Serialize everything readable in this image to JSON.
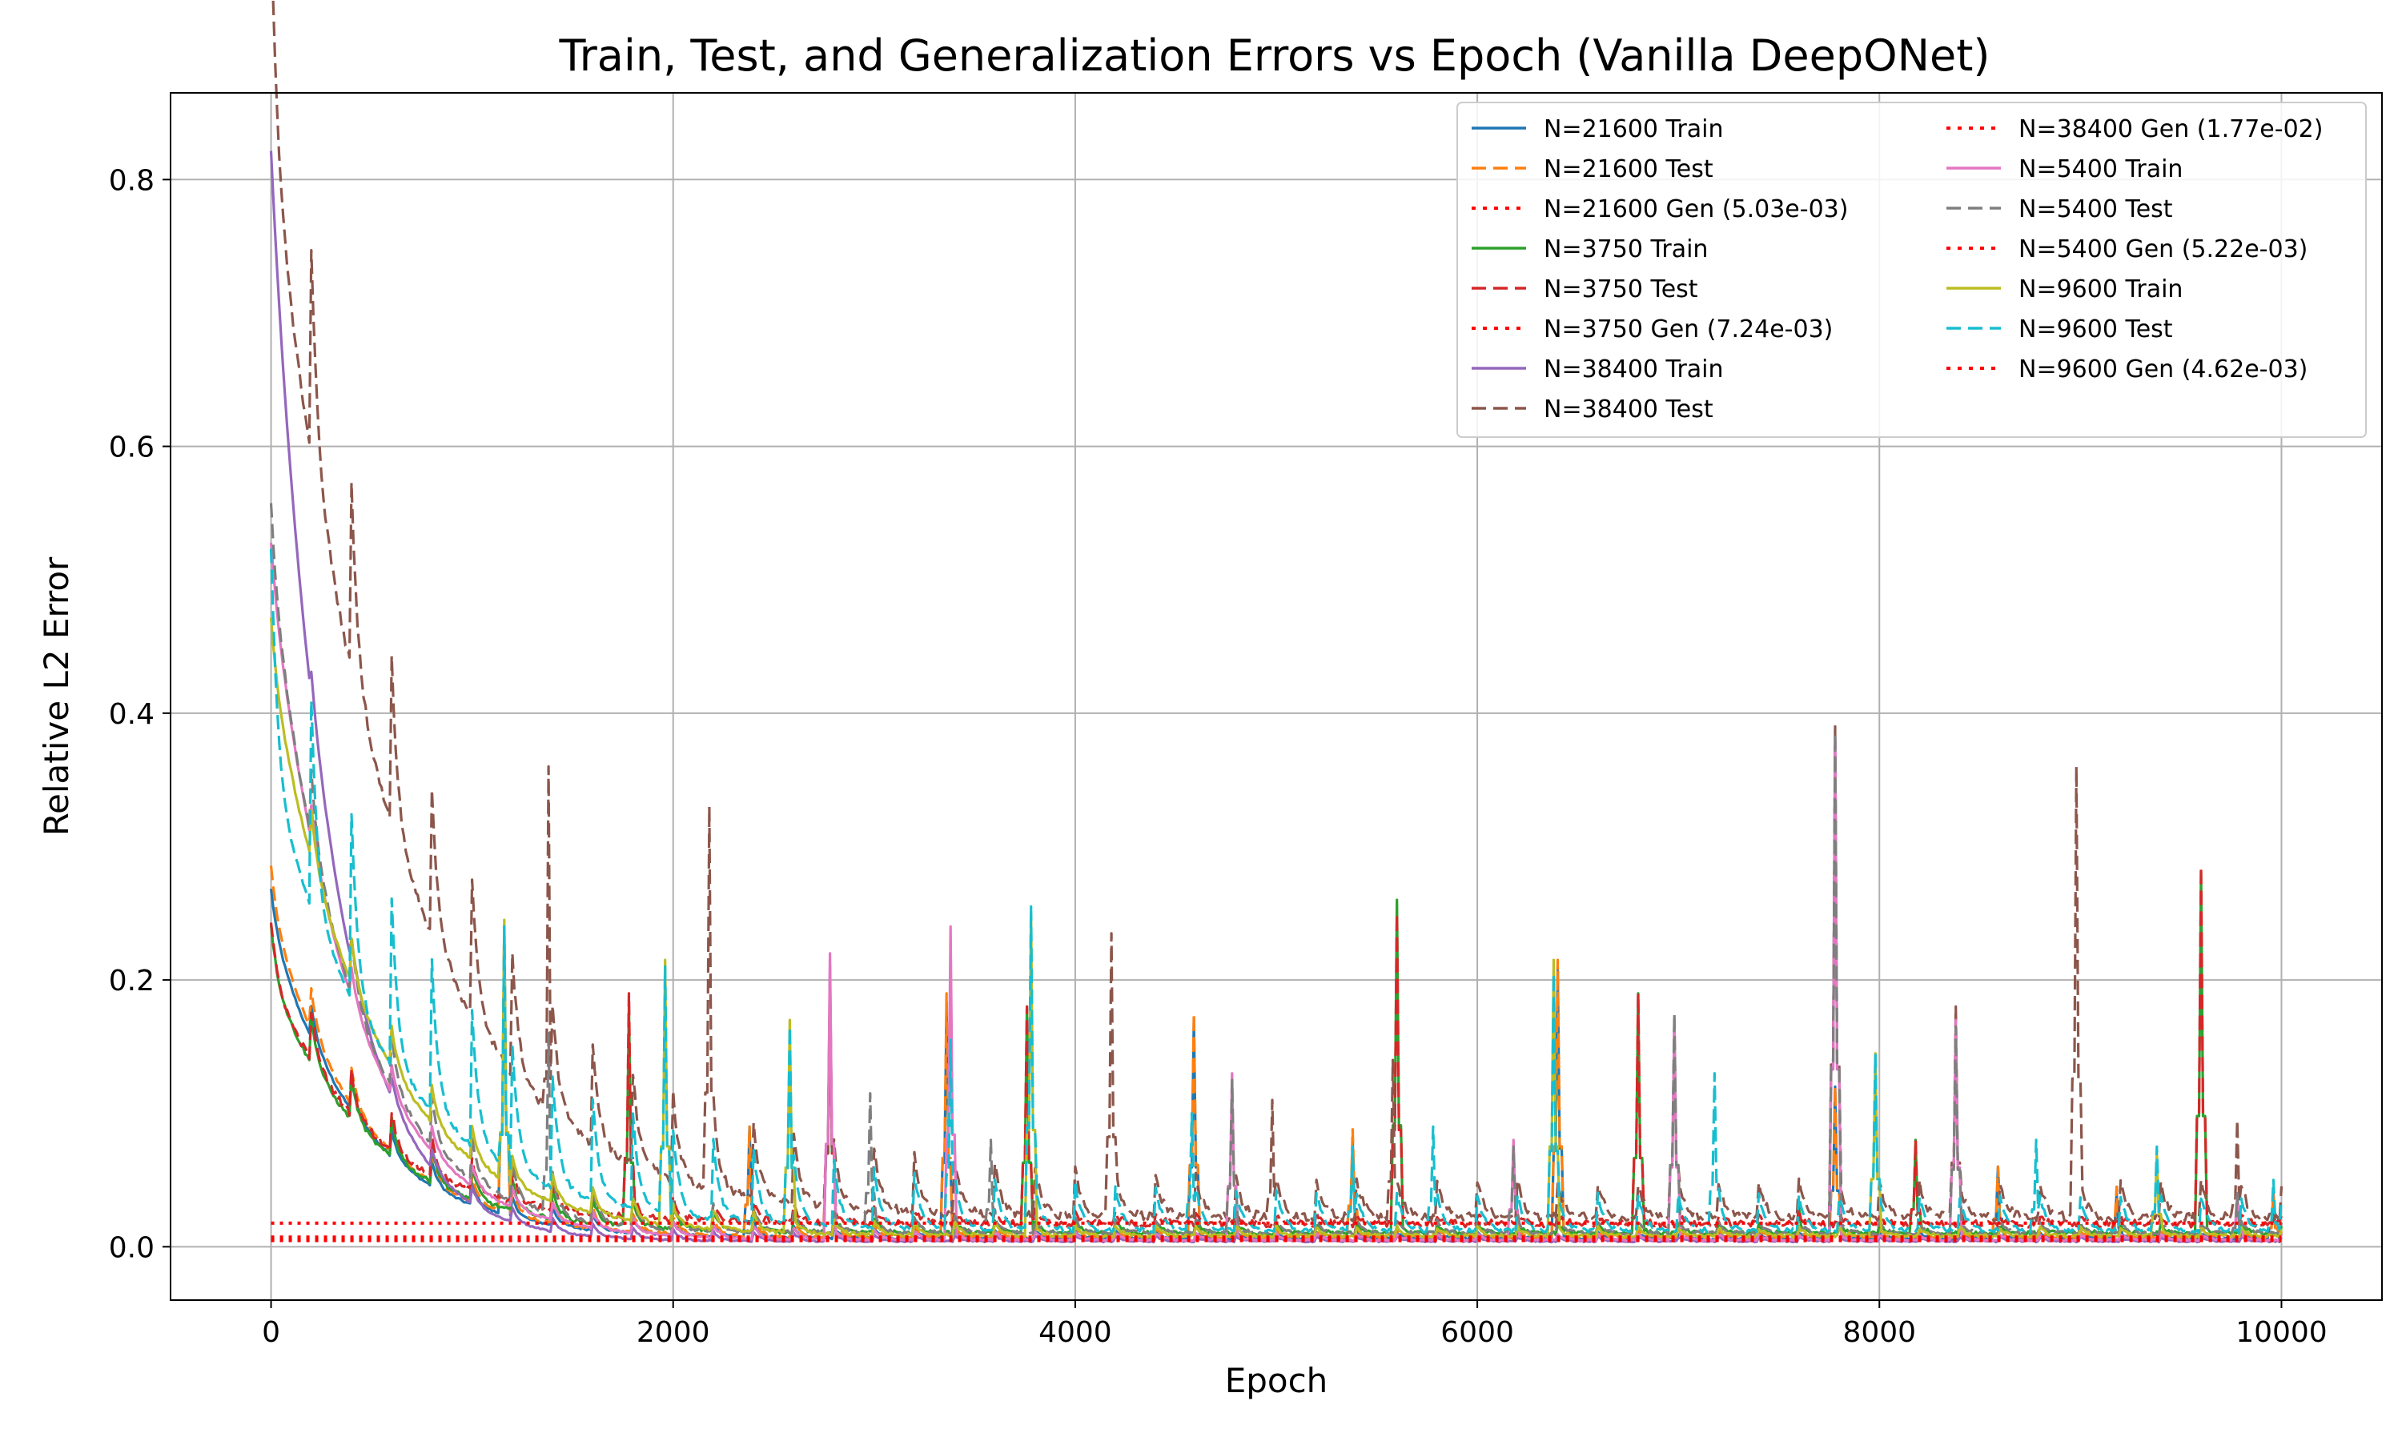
{
  "chart_data": {
    "type": "line",
    "title": "Train, Test, and Generalization Errors vs Epoch (Vanilla DeepONet)",
    "xlabel": "Epoch",
    "ylabel": "Relative L2 Error",
    "xlim": [
      -500,
      10500
    ],
    "ylim": [
      -0.04,
      0.865
    ],
    "x_ticks": [
      0,
      2000,
      4000,
      6000,
      8000,
      10000
    ],
    "x_tick_labels": [
      "0",
      "2000",
      "4000",
      "6000",
      "8000",
      "10000"
    ],
    "y_ticks": [
      0.0,
      0.2,
      0.4,
      0.6,
      0.8
    ],
    "y_tick_labels": [
      "0.0",
      "0.2",
      "0.4",
      "0.6",
      "0.8"
    ],
    "grid": true,
    "legend_position": "top-right",
    "legend_columns": 2,
    "series": [
      {
        "name": "N=21600 Train",
        "kind": "train",
        "color": "#1f77b4",
        "dash": "solid",
        "start": 0.24,
        "plateau": 0.006,
        "decay": 450,
        "periodic_amp": 0.004,
        "spikes": [
          [
            1160,
            0.24
          ],
          [
            2380,
            0.09
          ],
          [
            3360,
            0.18
          ],
          [
            4590,
            0.17
          ],
          [
            5380,
            0.08
          ],
          [
            6400,
            0.21
          ],
          [
            7780,
            0.12
          ],
          [
            8590,
            0.06
          ],
          [
            9180,
            0.04
          ],
          [
            9960,
            0.04
          ]
        ]
      },
      {
        "name": "N=21600 Test",
        "kind": "test",
        "color": "#ff7f0e",
        "dash": "dashed",
        "start": 0.25,
        "plateau": 0.007,
        "decay": 450,
        "periodic_amp": 0.005,
        "spikes": [
          [
            1160,
            0.24
          ],
          [
            2380,
            0.09
          ],
          [
            3360,
            0.19
          ],
          [
            4590,
            0.175
          ],
          [
            5380,
            0.088
          ],
          [
            6400,
            0.215
          ],
          [
            7780,
            0.12
          ],
          [
            8590,
            0.06
          ],
          [
            9180,
            0.045
          ],
          [
            9960,
            0.04
          ]
        ]
      },
      {
        "name": "N=21600 Gen (5.03e-03)",
        "kind": "gen",
        "color": "#ff0000",
        "dash": "dotted",
        "value": 0.00503
      },
      {
        "name": "N=3750 Train",
        "kind": "train",
        "color": "#2ca02c",
        "dash": "solid",
        "start": 0.2,
        "plateau": 0.01,
        "decay": 500,
        "periodic_amp": 0.006,
        "spikes": [
          [
            1780,
            0.18
          ],
          [
            2780,
            0.2
          ],
          [
            3760,
            0.18
          ],
          [
            5600,
            0.26
          ],
          [
            6800,
            0.19
          ],
          [
            7600,
            0.03
          ],
          [
            8180,
            0.08
          ],
          [
            9600,
            0.28
          ]
        ]
      },
      {
        "name": "N=3750 Test",
        "kind": "test",
        "color": "#d62728",
        "dash": "dashed",
        "start": 0.2,
        "plateau": 0.017,
        "decay": 500,
        "periodic_amp": 0.006,
        "spikes": [
          [
            1780,
            0.19
          ],
          [
            2780,
            0.2
          ],
          [
            3760,
            0.18
          ],
          [
            5600,
            0.25
          ],
          [
            6800,
            0.19
          ],
          [
            7600,
            0.03
          ],
          [
            8180,
            0.08
          ],
          [
            9600,
            0.285
          ]
        ]
      },
      {
        "name": "N=3750 Gen (7.24e-03)",
        "kind": "gen",
        "color": "#ff0000",
        "dash": "dotted",
        "value": 0.00724
      },
      {
        "name": "N=38400 Train",
        "kind": "train",
        "color": "#9467bd",
        "dash": "solid",
        "start": 0.8,
        "plateau": 0.004,
        "decay": 300,
        "periodic_amp": 0.003,
        "spikes": [
          [
            2780,
            0.21
          ],
          [
            7780,
            0.38
          ]
        ]
      },
      {
        "name": "N=38400 Test",
        "kind": "test",
        "color": "#8c564b",
        "dash": "dashed",
        "start": 0.82,
        "plateau": 0.022,
        "decay": 600,
        "periodic_amp": 0.025,
        "spikes": [
          [
            1380,
            0.36
          ],
          [
            2180,
            0.33
          ],
          [
            2780,
            0.2
          ],
          [
            4180,
            0.235
          ],
          [
            4980,
            0.11
          ],
          [
            5580,
            0.14
          ],
          [
            6980,
            0.17
          ],
          [
            7780,
            0.39
          ],
          [
            8380,
            0.18
          ],
          [
            8980,
            0.36
          ],
          [
            9780,
            0.095
          ]
        ]
      },
      {
        "name": "N=38400 Gen (1.77e-02)",
        "kind": "gen",
        "color": "#ff0000",
        "dash": "dotted",
        "value": 0.0177
      },
      {
        "name": "N=5400 Train",
        "kind": "train",
        "color": "#e377c2",
        "dash": "solid",
        "start": 0.5,
        "plateau": 0.005,
        "decay": 400,
        "periodic_amp": 0.004,
        "spikes": [
          [
            2780,
            0.22
          ],
          [
            3380,
            0.24
          ],
          [
            4780,
            0.13
          ],
          [
            6180,
            0.08
          ],
          [
            6980,
            0.17
          ],
          [
            7780,
            0.38
          ],
          [
            8380,
            0.17
          ],
          [
            9780,
            0.04
          ]
        ]
      },
      {
        "name": "N=5400 Test",
        "kind": "test",
        "color": "#7f7f7f",
        "dash": "dashed",
        "start": 0.5,
        "plateau": 0.01,
        "decay": 400,
        "periodic_amp": 0.008,
        "spikes": [
          [
            1380,
            0.16
          ],
          [
            2980,
            0.115
          ],
          [
            3580,
            0.08
          ],
          [
            4780,
            0.125
          ],
          [
            6180,
            0.075
          ],
          [
            6980,
            0.175
          ],
          [
            7780,
            0.385
          ],
          [
            8380,
            0.165
          ],
          [
            9780,
            0.04
          ]
        ]
      },
      {
        "name": "N=5400 Gen (5.22e-03)",
        "kind": "gen",
        "color": "#ff0000",
        "dash": "dotted",
        "value": 0.00522
      },
      {
        "name": "N=9600 Train",
        "kind": "train",
        "color": "#bcbd22",
        "dash": "solid",
        "start": 0.43,
        "plateau": 0.008,
        "decay": 500,
        "periodic_amp": 0.006,
        "spikes": [
          [
            1160,
            0.245
          ],
          [
            1960,
            0.215
          ],
          [
            2580,
            0.17
          ],
          [
            3780,
            0.25
          ],
          [
            6380,
            0.215
          ],
          [
            7980,
            0.145
          ],
          [
            9380,
            0.07
          ]
        ]
      },
      {
        "name": "N=9600 Test",
        "kind": "test",
        "color": "#17becf",
        "dash": "dashed",
        "start": 0.35,
        "plateau": 0.012,
        "decay": 600,
        "periodic_amp": 0.025,
        "spikes": [
          [
            1160,
            0.24
          ],
          [
            1960,
            0.21
          ],
          [
            2580,
            0.165
          ],
          [
            3380,
            0.155
          ],
          [
            3780,
            0.255
          ],
          [
            4580,
            0.1
          ],
          [
            5380,
            0.075
          ],
          [
            5780,
            0.09
          ],
          [
            6380,
            0.205
          ],
          [
            7180,
            0.13
          ],
          [
            7980,
            0.145
          ],
          [
            8780,
            0.08
          ],
          [
            9380,
            0.075
          ],
          [
            9960,
            0.05
          ]
        ]
      },
      {
        "name": "N=9600 Gen (4.62e-03)",
        "kind": "gen",
        "color": "#ff0000",
        "dash": "dotted",
        "value": 0.00462
      }
    ]
  }
}
